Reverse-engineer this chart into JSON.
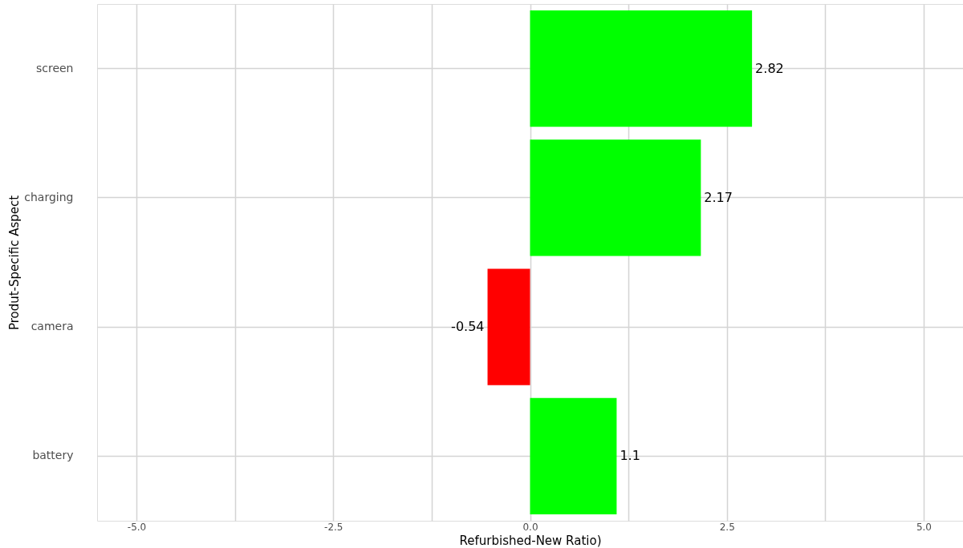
{
  "chart_data": {
    "type": "bar",
    "orientation": "horizontal",
    "xlabel": "Refurbished-New Ratio)",
    "ylabel": "Produt-Specific Aspect",
    "categories": [
      "screen",
      "charging",
      "camera",
      "battery"
    ],
    "values": [
      2.82,
      2.17,
      -0.54,
      1.1
    ],
    "colors": [
      "#00ff00",
      "#00ff00",
      "#ff0000",
      "#00ff00"
    ],
    "xlim": [
      -5.5,
      5.5
    ],
    "xticks": [
      {
        "value": -5,
        "label": "-5.0"
      },
      {
        "value": -3.75,
        "label": null
      },
      {
        "value": -2.5,
        "label": "-2.5"
      },
      {
        "value": -1.25,
        "label": null
      },
      {
        "value": 0,
        "label": "0.0"
      },
      {
        "value": 1.25,
        "label": null
      },
      {
        "value": 2.5,
        "label": "2.5"
      },
      {
        "value": 3.75,
        "label": null
      },
      {
        "value": 5,
        "label": "5.0"
      }
    ],
    "grid": true,
    "data_labels": true
  }
}
